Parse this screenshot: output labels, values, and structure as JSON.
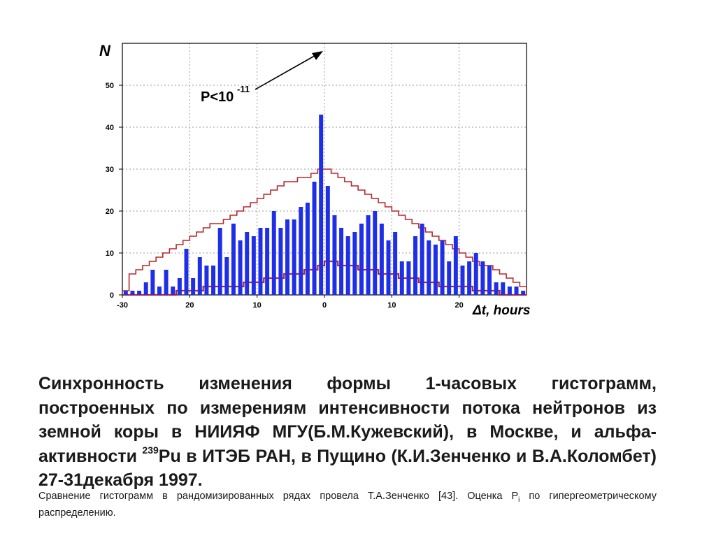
{
  "chart_data": {
    "type": "bar",
    "ylabel": "N",
    "xlabel": "Δt, hours",
    "xlim": [
      -30,
      30
    ],
    "ylim": [
      0,
      60
    ],
    "x_tick_labels": [
      "-30",
      "20",
      "10",
      "0",
      "10",
      "20"
    ],
    "y_tick_labels": [
      "0",
      "10",
      "20",
      "30",
      "40",
      "50"
    ],
    "grid": true,
    "annotation": {
      "base": "P<10",
      "exponent": "-11"
    },
    "colors": {
      "bars": "#1f2fe8",
      "staircase": "#b8272b"
    },
    "series": [
      {
        "type": "bar",
        "x": [
          -29.5,
          -28.5,
          -27.5,
          -26.5,
          -25.5,
          -24.5,
          -23.5,
          -22.5,
          -21.5,
          -20.5,
          -19.5,
          -18.5,
          -17.5,
          -16.5,
          -15.5,
          -14.5,
          -13.5,
          -12.5,
          -11.5,
          -10.5,
          -9.5,
          -8.5,
          -7.5,
          -6.5,
          -5.5,
          -4.5,
          -3.5,
          -2.5,
          -1.5,
          -0.5,
          0.5,
          1.5,
          2.5,
          3.5,
          4.5,
          5.5,
          6.5,
          7.5,
          8.5,
          9.5,
          10.5,
          11.5,
          12.5,
          13.5,
          14.5,
          15.5,
          16.5,
          17.5,
          18.5,
          19.5,
          20.5,
          21.5,
          22.5,
          23.5,
          24.5,
          25.5,
          26.5,
          27.5,
          28.5,
          29.5
        ],
        "values": [
          1,
          1,
          1,
          3,
          6,
          2,
          6,
          2,
          4,
          11,
          4,
          9,
          7,
          7,
          16,
          9,
          17,
          13,
          15,
          14,
          16,
          16,
          20,
          16,
          18,
          18,
          21,
          22,
          27,
          43,
          26,
          19,
          16,
          14,
          15,
          17,
          19,
          20,
          17,
          13,
          15,
          8,
          8,
          14,
          17,
          13,
          12,
          13,
          8,
          14,
          7,
          8,
          10,
          8,
          7,
          3,
          3,
          2,
          2,
          1
        ]
      },
      {
        "type": "line",
        "x": [
          -30,
          -29,
          -28,
          -27,
          -26,
          -25,
          -24,
          -23,
          -22,
          -21,
          -20,
          -19,
          -18,
          -17,
          -16,
          -15,
          -14,
          -13,
          -12,
          -11,
          -10,
          -9,
          -8,
          -7,
          -6,
          -5,
          -4,
          -3,
          -2,
          -1,
          0,
          1,
          2,
          3,
          4,
          5,
          6,
          7,
          8,
          9,
          10,
          11,
          12,
          13,
          14,
          15,
          16,
          17,
          18,
          19,
          20,
          21,
          22,
          23,
          24,
          25,
          26,
          27,
          28,
          29,
          30
        ],
        "values": [
          0,
          0,
          0,
          0,
          0,
          0,
          0,
          0,
          1,
          1,
          1,
          1,
          2,
          2,
          2,
          2,
          2,
          2,
          3,
          3,
          3,
          4,
          4,
          4,
          5,
          5,
          5,
          6,
          6,
          7,
          8,
          8,
          7,
          7,
          7,
          6,
          6,
          6,
          5,
          5,
          5,
          4,
          4,
          4,
          3,
          3,
          3,
          2,
          2,
          2,
          2,
          2,
          1,
          1,
          1,
          1,
          0,
          0,
          0,
          0,
          0
        ]
      },
      {
        "type": "line",
        "x": [
          -30,
          -29,
          -28,
          -27,
          -26,
          -25,
          -24,
          -23,
          -22,
          -21,
          -20,
          -19,
          -18,
          -17,
          -16,
          -15,
          -14,
          -13,
          -12,
          -11,
          -10,
          -9,
          -8,
          -7,
          -6,
          -5,
          -4,
          -3,
          -2,
          -1,
          0,
          1,
          2,
          3,
          4,
          5,
          6,
          7,
          8,
          9,
          10,
          11,
          12,
          13,
          14,
          15,
          16,
          17,
          18,
          19,
          20,
          21,
          22,
          23,
          24,
          25,
          26,
          27,
          28,
          29,
          30
        ],
        "values": [
          1,
          5,
          6,
          7,
          8,
          9,
          10,
          11,
          12,
          13,
          14,
          15,
          16,
          17,
          17,
          18,
          19,
          20,
          21,
          22,
          23,
          24,
          25,
          26,
          27,
          27,
          28,
          28,
          29,
          30,
          30,
          29,
          28,
          27,
          26,
          25,
          24,
          23,
          22,
          21,
          20,
          19,
          18,
          17,
          16,
          15,
          14,
          13,
          12,
          11,
          10,
          9,
          8,
          7,
          7,
          6,
          5,
          4,
          3,
          2,
          1
        ]
      }
    ]
  },
  "caption": {
    "line1": "Синхронность изменения формы 1-часовых гистограмм, построенных по измерениям интенсивности потока нейтронов из земной коры в НИИЯФ МГУ(Б.М.Кужевский), в Москве, и альфа-активности ",
    "isotope_mass": "239",
    "line2": "Pu в ИТЭБ РАН, в Пущино (К.И.Зенченко и В.А.Коломбет) 27-31декабря 1997."
  },
  "note": {
    "text1": "Сравнение гистограмм в рандомизированных рядах провела Т.А.Зенченко [43]. Оценка P",
    "subscript": "i",
    "text2": " по гипергеометрическому распределению."
  }
}
